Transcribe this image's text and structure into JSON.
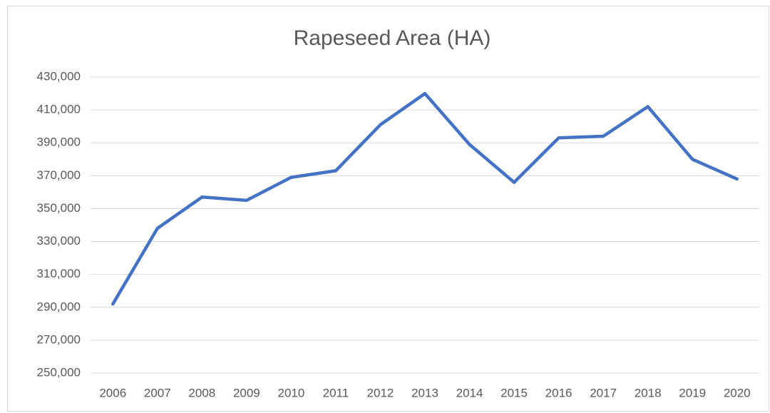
{
  "chart_data": {
    "type": "line",
    "title": "Rapeseed Area (HA)",
    "categories": [
      "2006",
      "2007",
      "2008",
      "2009",
      "2010",
      "2011",
      "2012",
      "2013",
      "2014",
      "2015",
      "2016",
      "2017",
      "2018",
      "2019",
      "2020"
    ],
    "values": [
      292000,
      338000,
      357000,
      355000,
      369000,
      373000,
      401000,
      420000,
      389000,
      366000,
      393000,
      394000,
      412000,
      380000,
      368000
    ],
    "color": "#4472c4",
    "ylim": [
      250000,
      430000
    ],
    "yticks": [
      {
        "value": 250000,
        "label": "250,000"
      },
      {
        "value": 270000,
        "label": "270,000"
      },
      {
        "value": 290000,
        "label": "290,000"
      },
      {
        "value": 310000,
        "label": "310,000"
      },
      {
        "value": 330000,
        "label": "330,000"
      },
      {
        "value": 350000,
        "label": "350,000"
      },
      {
        "value": 370000,
        "label": "370,000"
      },
      {
        "value": 390000,
        "label": "390,000"
      },
      {
        "value": 410000,
        "label": "410,000"
      },
      {
        "value": 430000,
        "label": "430,000"
      }
    ],
    "grid": true
  }
}
